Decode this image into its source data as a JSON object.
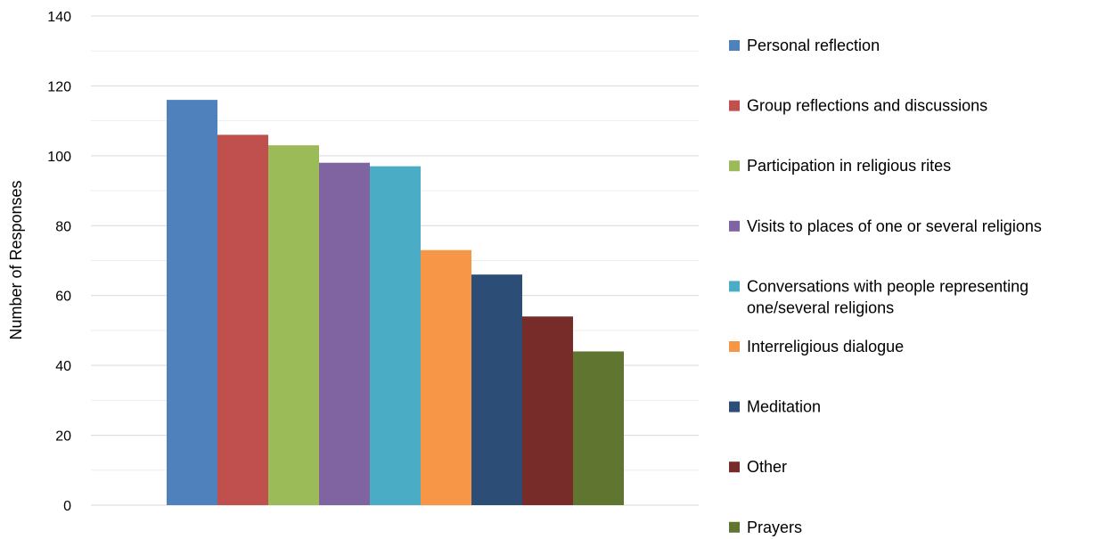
{
  "chart_data": {
    "type": "bar",
    "title": "",
    "xlabel": "",
    "ylabel": "Number of Responses",
    "ylim": [
      0,
      140
    ],
    "y_ticks": [
      0,
      20,
      40,
      60,
      80,
      100,
      120,
      140
    ],
    "grid": true,
    "legend_position": "right",
    "categories": [
      ""
    ],
    "series": [
      {
        "name": "Personal reflection",
        "values": [
          116
        ],
        "color": "#4f81bd"
      },
      {
        "name": "Group reflections and discussions",
        "values": [
          106
        ],
        "color": "#c0504d"
      },
      {
        "name": "Participation in religious rites",
        "values": [
          103
        ],
        "color": "#9bbb59"
      },
      {
        "name": "Visits to places of one or several religions",
        "values": [
          98
        ],
        "color": "#8064a2"
      },
      {
        "name": "Conversations with people representing one/several religions",
        "values": [
          97
        ],
        "color": "#4bacc6"
      },
      {
        "name": "Interreligious dialogue",
        "values": [
          73
        ],
        "color": "#f79646"
      },
      {
        "name": "Meditation",
        "values": [
          66
        ],
        "color": "#2c4d75"
      },
      {
        "name": "Other",
        "values": [
          54
        ],
        "color": "#772c2a"
      },
      {
        "name": "Prayers",
        "values": [
          44
        ],
        "color": "#5f7530"
      }
    ]
  }
}
